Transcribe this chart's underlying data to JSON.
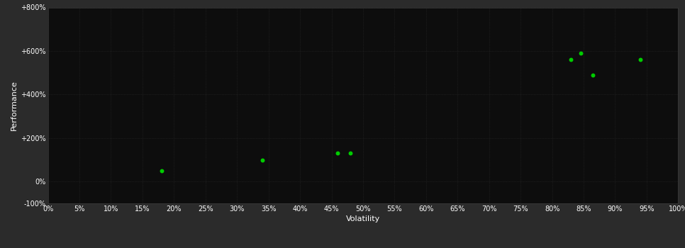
{
  "points_x": [
    0.18,
    0.34,
    0.46,
    0.48,
    0.83,
    0.845,
    0.865,
    0.94
  ],
  "points_y": [
    0.5,
    1.0,
    1.3,
    1.3,
    5.6,
    5.9,
    4.9,
    5.6
  ],
  "point_color": "#00cc00",
  "point_size": 18,
  "background_color": "#2b2b2b",
  "plot_bg_color": "#0d0d0d",
  "grid_color": "#2a2a2a",
  "text_color": "#ffffff",
  "xlabel": "Volatility",
  "ylabel": "Performance",
  "xlim": [
    0.0,
    1.0
  ],
  "ylim": [
    -1.0,
    8.0
  ],
  "xtick_values": [
    0.0,
    0.05,
    0.1,
    0.15,
    0.2,
    0.25,
    0.3,
    0.35,
    0.4,
    0.45,
    0.5,
    0.55,
    0.6,
    0.65,
    0.7,
    0.75,
    0.8,
    0.85,
    0.9,
    0.95,
    1.0
  ],
  "ytick_values": [
    -1.0,
    0.0,
    2.0,
    4.0,
    6.0,
    8.0
  ],
  "ytick_labels": [
    "-100%",
    "0%",
    "+200%",
    "+400%",
    "+600%",
    "+800%"
  ],
  "xlabel_fontsize": 8,
  "ylabel_fontsize": 8,
  "tick_fontsize": 7
}
